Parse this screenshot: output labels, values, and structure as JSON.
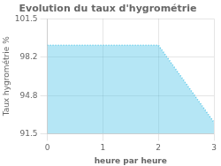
{
  "chart_data": {
    "type": "area",
    "title": "Evolution du taux d'hygrométrie",
    "xlabel": "heure par heure",
    "ylabel": "Taux hygrométrie %",
    "x": [
      0,
      2,
      3
    ],
    "values": [
      99.2,
      99.2,
      92.5
    ],
    "color": "#5bc8e8",
    "line_style": "dotted",
    "xlim": [
      0,
      3
    ],
    "ylim": [
      91.5,
      101.5
    ],
    "xticks": [
      0,
      1,
      2,
      3
    ],
    "yticks": [
      91.5,
      94.8,
      98.2,
      101.5
    ],
    "grid": true
  }
}
